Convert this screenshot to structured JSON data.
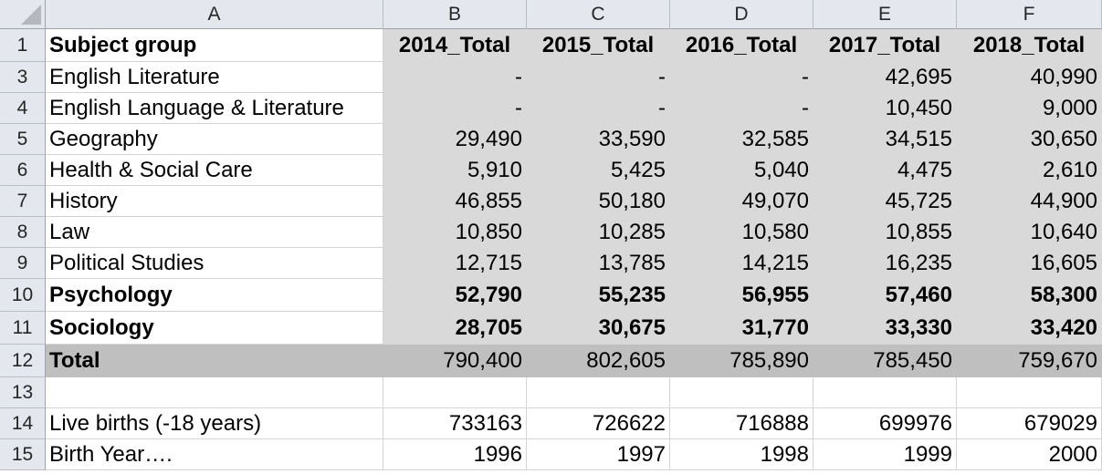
{
  "columns": [
    "A",
    "B",
    "C",
    "D",
    "E",
    "F"
  ],
  "rows": [
    {
      "num": "1",
      "style": "header",
      "cells": [
        "Subject group",
        "2014_Total",
        "2015_Total",
        "2016_Total",
        "2017_Total",
        "2018_Total"
      ]
    },
    {
      "num": "3",
      "style": "data",
      "cells": [
        "English Literature",
        "-",
        "-",
        "-",
        "42,695",
        "40,990"
      ]
    },
    {
      "num": "4",
      "style": "data",
      "cells": [
        "English Language & Literature",
        "-",
        "-",
        "-",
        "10,450",
        "9,000"
      ]
    },
    {
      "num": "5",
      "style": "data",
      "cells": [
        "Geography",
        "29,490",
        "33,590",
        "32,585",
        "34,515",
        "30,650"
      ]
    },
    {
      "num": "6",
      "style": "data",
      "cells": [
        "Health & Social Care",
        "5,910",
        "5,425",
        "5,040",
        "4,475",
        "2,610"
      ]
    },
    {
      "num": "7",
      "style": "data",
      "cells": [
        "History",
        "46,855",
        "50,180",
        "49,070",
        "45,725",
        "44,900"
      ]
    },
    {
      "num": "8",
      "style": "data",
      "cells": [
        "Law",
        "10,850",
        "10,285",
        "10,580",
        "10,855",
        "10,640"
      ]
    },
    {
      "num": "9",
      "style": "data",
      "cells": [
        "Political Studies",
        "12,715",
        "13,785",
        "14,215",
        "16,235",
        "16,605"
      ]
    },
    {
      "num": "10",
      "style": "bold",
      "cells": [
        "Psychology",
        "52,790",
        "55,235",
        "56,955",
        "57,460",
        "58,300"
      ]
    },
    {
      "num": "11",
      "style": "bold",
      "cells": [
        "Sociology",
        "28,705",
        "30,675",
        "31,770",
        "33,330",
        "33,420"
      ]
    },
    {
      "num": "12",
      "style": "total",
      "cells": [
        "Total",
        "790,400",
        "802,605",
        "785,890",
        "785,450",
        "759,670"
      ]
    },
    {
      "num": "13",
      "style": "plain",
      "cells": [
        "",
        "",
        "",
        "",
        "",
        ""
      ]
    },
    {
      "num": "14",
      "style": "plain",
      "cells": [
        "Live births (-18 years)",
        "733163",
        "726622",
        "716888",
        "699976",
        "679029"
      ]
    },
    {
      "num": "15",
      "style": "plain",
      "cells": [
        "Birth Year….",
        "1996",
        "1997",
        "1998",
        "1999",
        "2000"
      ]
    }
  ],
  "colors": {
    "header_bg": "#e4e8ee",
    "shade": "#d9d9d9",
    "total_shade": "#bfbfbf",
    "gridline": "#d4d4d4"
  }
}
